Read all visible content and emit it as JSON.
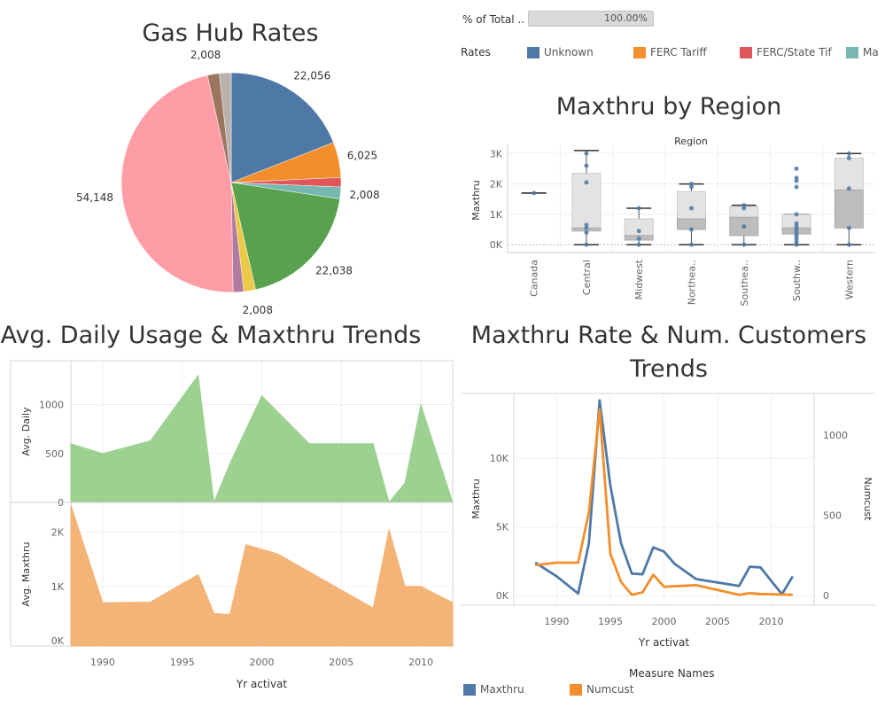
{
  "titles": {
    "pie": "Gas Hub Rates",
    "box": "Maxthru by Region",
    "area": "Avg. Daily Usage & Maxthru Trends",
    "line_1": "Maxthru Rate & Num. Customers",
    "line_2": "Trends"
  },
  "filter": {
    "label": "% of Total ..",
    "value": "100.00%",
    "fraction": 1.0
  },
  "rates_legend": {
    "label": "Rates",
    "items": [
      {
        "name": "Unknown",
        "color": "#4e79a7"
      },
      {
        "name": "FERC Tariff",
        "color": "#f28e2b"
      },
      {
        "name": "FERC/State Tif",
        "color": "#e15759"
      },
      {
        "name": "Ma",
        "color": "#76b7b2"
      }
    ]
  },
  "measure_legend": {
    "title": "Measure Names",
    "items": [
      {
        "name": "Maxthru",
        "color": "#4e79a7"
      },
      {
        "name": "Numcust",
        "color": "#f28e2b"
      }
    ]
  },
  "chart_data": [
    {
      "type": "pie",
      "slices": [
        {
          "value": 22056,
          "label": "22,056",
          "color": "#4e79a7"
        },
        {
          "value": 6025,
          "label": "6,025",
          "color": "#f28e2b"
        },
        {
          "value": 1600,
          "label": "",
          "color": "#e15759"
        },
        {
          "value": 2008,
          "label": "2,008",
          "color": "#76b7b2"
        },
        {
          "value": 22038,
          "label": "22,038",
          "color": "#59a14f"
        },
        {
          "value": 2008,
          "label": "2,008",
          "color": "#edc948"
        },
        {
          "value": 1800,
          "label": "",
          "color": "#b07aa1"
        },
        {
          "value": 54148,
          "label": "54,148",
          "color": "#ff9da7"
        },
        {
          "value": 2008,
          "label": "2,008",
          "color": "#9c755f"
        },
        {
          "value": 2008,
          "label": "",
          "color": "#bab0ac"
        }
      ]
    },
    {
      "type": "box",
      "xlabel": "Region",
      "ylabel": "Maxthru",
      "ylim": [
        -200,
        3300
      ],
      "yticks": [
        0,
        1000,
        2000,
        3000
      ],
      "ytick_labels": [
        "0K",
        "1K",
        "2K",
        "3K"
      ],
      "categories": [
        {
          "name": "Canada",
          "label": "Canada",
          "min": 1700,
          "q1": 1700,
          "median": 1700,
          "q3": 1700,
          "max": 1700,
          "points": [
            1700
          ]
        },
        {
          "name": "Central",
          "label": "Central",
          "min": 0,
          "q1": 450,
          "median": 550,
          "q3": 2350,
          "max": 3100,
          "points": [
            0,
            400,
            550,
            650,
            2050,
            2600,
            3000
          ]
        },
        {
          "name": "Midwest",
          "label": "Midwest",
          "min": 0,
          "q1": 150,
          "median": 300,
          "q3": 850,
          "max": 1200,
          "points": [
            0,
            200,
            450,
            1200
          ]
        },
        {
          "name": "Northeast",
          "label": "Northea..",
          "min": 0,
          "q1": 500,
          "median": 850,
          "q3": 1750,
          "max": 2000,
          "points": [
            0,
            500,
            1200,
            1900,
            2000
          ]
        },
        {
          "name": "Southeast",
          "label": "Southea..",
          "min": 0,
          "q1": 300,
          "median": 900,
          "q3": 1250,
          "max": 1300,
          "points": [
            0,
            600,
            1200,
            1300
          ]
        },
        {
          "name": "Southwest",
          "label": "Southw..",
          "min": 0,
          "q1": 350,
          "median": 550,
          "q3": 1000,
          "max": 1000,
          "points": [
            0,
            100,
            200,
            300,
            400,
            500,
            600,
            700,
            1000,
            1900,
            2100,
            2200,
            2500
          ]
        },
        {
          "name": "Western",
          "label": "Western",
          "min": 0,
          "q1": 550,
          "median": 1800,
          "q3": 2850,
          "max": 3000,
          "points": [
            0,
            550,
            1850,
            2850,
            3000
          ]
        }
      ]
    },
    {
      "type": "area",
      "xlabel": "Yr activat",
      "xlim": [
        1988,
        2012
      ],
      "xticks": [
        1990,
        1995,
        2000,
        2005,
        2010
      ],
      "panels": [
        {
          "ylabel": "Avg. Daily",
          "color": "#8cc97f",
          "ylim": [
            0,
            1450
          ],
          "yticks": [
            0,
            500,
            1000
          ],
          "ytick_labels": [
            "0",
            "500",
            "1000"
          ],
          "x": [
            1988,
            1990,
            1993,
            1996,
            1997,
            1998,
            2000,
            2003,
            2007,
            2008,
            2009,
            2010,
            2012
          ],
          "y": [
            600,
            500,
            630,
            1300,
            0,
            400,
            1090,
            600,
            600,
            0,
            200,
            1000,
            0
          ]
        },
        {
          "ylabel": "Avg. Maxthru",
          "color": "#f3a761",
          "ylim": [
            -100,
            2550
          ],
          "yticks": [
            0,
            1000,
            2000
          ],
          "ytick_labels": [
            "0K",
            "1K",
            "2K"
          ],
          "x": [
            1988,
            1990,
            1993,
            1996,
            1997,
            1998,
            1999,
            2001,
            2007,
            2008,
            2009,
            2010,
            2012
          ],
          "y": [
            2500,
            700,
            710,
            1220,
            500,
            480,
            1770,
            1600,
            600,
            2050,
            1000,
            1000,
            700
          ]
        }
      ]
    },
    {
      "type": "line",
      "xlabel": "Yr activat",
      "xlim": [
        1986,
        2014
      ],
      "xticks": [
        1990,
        1995,
        2000,
        2005,
        2010
      ],
      "y_left": {
        "label": "Maxthru",
        "ylim": [
          -700,
          14700
        ],
        "ticks": [
          0,
          5000,
          10000
        ],
        "tick_labels": [
          "0K",
          "5K",
          "10K"
        ]
      },
      "y_right": {
        "label": "Numcust",
        "ylim": [
          -60,
          1260
        ],
        "ticks": [
          0,
          500,
          1000
        ],
        "tick_labels": [
          "0",
          "500",
          "1000"
        ]
      },
      "series": [
        {
          "name": "Maxthru",
          "axis": "left",
          "color": "#4e79a7",
          "x": [
            1988,
            1990,
            1992,
            1993,
            1994,
            1995,
            1996,
            1997,
            1998,
            1999,
            2000,
            2001,
            2003,
            2007,
            2008,
            2009,
            2011,
            2012
          ],
          "y": [
            2400,
            1400,
            150,
            3800,
            14200,
            8000,
            3800,
            1600,
            1550,
            3500,
            3200,
            2300,
            1200,
            700,
            2100,
            2050,
            100,
            1400
          ]
        },
        {
          "name": "Numcust",
          "axis": "right",
          "color": "#f28e2b",
          "x": [
            1988,
            1990,
            1992,
            1993,
            1994,
            1995,
            1996,
            1997,
            1998,
            1999,
            2000,
            2003,
            2007,
            2008,
            2009,
            2012
          ],
          "y": [
            190,
            205,
            205,
            520,
            1160,
            260,
            85,
            5,
            20,
            130,
            55,
            65,
            5,
            15,
            10,
            5
          ]
        }
      ]
    }
  ]
}
